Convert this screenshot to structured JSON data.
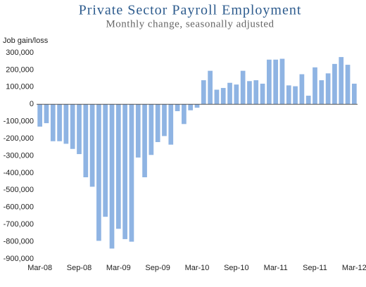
{
  "chart_data": {
    "type": "bar",
    "title": "Private Sector Payroll Employment",
    "subtitle": "Monthly change, seasonally adjusted",
    "y_axis_label": "Job gain/loss",
    "categories": [
      "Mar-08",
      null,
      null,
      null,
      null,
      null,
      "Sep-08",
      null,
      null,
      null,
      null,
      null,
      "Mar-09",
      null,
      null,
      null,
      null,
      null,
      "Sep-09",
      null,
      null,
      null,
      null,
      null,
      "Mar-10",
      null,
      null,
      null,
      null,
      null,
      "Sep-10",
      null,
      null,
      null,
      null,
      null,
      "Mar-11",
      null,
      null,
      null,
      null,
      null,
      "Sep-11",
      null,
      null,
      null,
      null,
      null,
      "Mar-12"
    ],
    "values": [
      -130000,
      -110000,
      -215000,
      -215000,
      -230000,
      -260000,
      -290000,
      -425000,
      -480000,
      -795000,
      -655000,
      -840000,
      -725000,
      -785000,
      -800000,
      -310000,
      -425000,
      -295000,
      -220000,
      -185000,
      -235000,
      -40000,
      -115000,
      -35000,
      -20000,
      140000,
      195000,
      85000,
      95000,
      125000,
      115000,
      195000,
      135000,
      140000,
      120000,
      260000,
      260000,
      265000,
      110000,
      105000,
      175000,
      50000,
      215000,
      140000,
      180000,
      235000,
      275000,
      230000,
      120000
    ],
    "color": "#8fb4e3",
    "ylim": [
      -900000,
      300000
    ],
    "yticks": [
      {
        "value": -900000,
        "label": "-900,000"
      },
      {
        "value": -800000,
        "label": "-800,000"
      },
      {
        "value": -700000,
        "label": "-700,000"
      },
      {
        "value": -600000,
        "label": "-600,000"
      },
      {
        "value": -500000,
        "label": "-500,000"
      },
      {
        "value": -400000,
        "label": "-400,000"
      },
      {
        "value": -300000,
        "label": "-300,000"
      },
      {
        "value": -200000,
        "label": "-200,000"
      },
      {
        "value": -100000,
        "label": "-100,000"
      },
      0,
      {
        "value": 100000,
        "label": "100,000"
      },
      {
        "value": 200000,
        "label": "200,000"
      },
      {
        "value": 300000,
        "label": "300,000"
      }
    ],
    "grid": false
  }
}
